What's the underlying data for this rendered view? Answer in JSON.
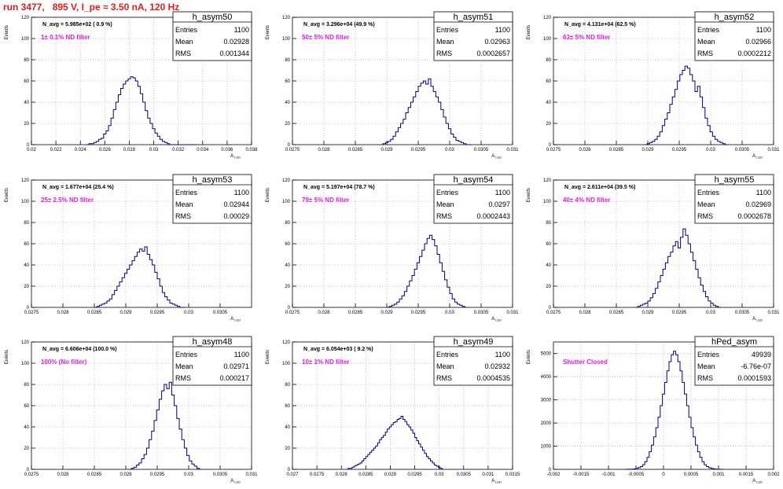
{
  "header": {
    "title": "run 3477,   895 V, I_pe ≈ 3.50 nA, 120 Hz"
  },
  "colors": {
    "title": "#e41a1c",
    "annotation": "#e020e0",
    "histogram": "#00007f",
    "grid": "#b8b8b8",
    "axis": "#000000"
  },
  "panel_text": {
    "ylabel": "Events",
    "xlabel": "A_LED",
    "stats_labels": {
      "entries": "Entries",
      "mean": "Mean",
      "rms": "RMS"
    }
  },
  "chart_data": [
    {
      "type": "histogram",
      "name": "h_asym50",
      "navg": "N_avg = 5.985e+02 ( 0.9 %)",
      "note": "1± 0.1% ND filter",
      "entries": "1100",
      "mean": "0.02928",
      "rms": "0.001344",
      "xlim": [
        0.02,
        0.038
      ],
      "ylim": [
        0,
        120
      ],
      "xticks": [
        "0.02",
        "0.022",
        "0.024",
        "0.026",
        "0.028",
        "0.03",
        "0.032",
        "0.034",
        "0.036",
        "0.038"
      ],
      "yticks": [
        "0",
        "20",
        "40",
        "60",
        "80",
        "100",
        "120"
      ],
      "xlabel": "A_LED",
      "ylabel": "Events",
      "grid": true,
      "bins": {
        "start": 0.0245,
        "width": 0.0002,
        "counts": [
          0,
          1,
          1,
          2,
          3,
          5,
          6,
          10,
          13,
          18,
          25,
          33,
          40,
          47,
          53,
          57,
          60,
          62,
          64,
          63,
          60,
          55,
          48,
          40,
          32,
          25,
          20,
          15,
          11,
          8,
          5,
          3,
          2,
          1,
          0,
          0,
          0,
          0,
          0,
          0,
          0,
          0,
          0,
          0,
          0
        ]
      }
    },
    {
      "type": "histogram",
      "name": "h_asym51",
      "navg": "N_avg = 3.296e+04 (49.9 %)",
      "note": "50± 5% ND filter",
      "entries": "1100",
      "mean": "0.02963",
      "rms": "0.0002657",
      "xlim": [
        0.0275,
        0.031
      ],
      "ylim": [
        0,
        120
      ],
      "xticks": [
        "0.0275",
        "0.028",
        "0.0285",
        "0.029",
        "0.0295",
        "0.03",
        "0.0305",
        "0.031"
      ],
      "yticks": [
        "0",
        "20",
        "40",
        "60",
        "80",
        "100",
        "120"
      ],
      "xlabel": "A_LED",
      "ylabel": "Events",
      "grid": true,
      "bins": {
        "start": 0.0289,
        "width": 4e-05,
        "counts": [
          0,
          1,
          2,
          3,
          5,
          8,
          12,
          16,
          20,
          24,
          30,
          35,
          40,
          45,
          50,
          55,
          58,
          60,
          57,
          62,
          55,
          50,
          45,
          40,
          33,
          26,
          20,
          15,
          10,
          7,
          4,
          3,
          2,
          1,
          0,
          0
        ]
      }
    },
    {
      "type": "histogram",
      "name": "h_asym52",
      "navg": "N_avg = 4.131e+04 (62.5 %)",
      "note": "63± 5% ND filter",
      "entries": "1100",
      "mean": "0.02966",
      "rms": "0.0002212",
      "xlim": [
        0.0275,
        0.031
      ],
      "ylim": [
        0,
        120
      ],
      "xticks": [
        "0.0275",
        "0.028",
        "0.0285",
        "0.029",
        "0.0295",
        "0.03",
        "0.0305",
        "0.031"
      ],
      "yticks": [
        "0",
        "20",
        "40",
        "60",
        "80",
        "100",
        "120"
      ],
      "xlabel": "A_LED",
      "ylabel": "Events",
      "grid": true,
      "bins": {
        "start": 0.02895,
        "width": 4e-05,
        "counts": [
          0,
          1,
          2,
          3,
          5,
          8,
          12,
          18,
          24,
          30,
          38,
          45,
          52,
          60,
          66,
          70,
          74,
          72,
          66,
          60,
          50,
          55,
          45,
          35,
          25,
          18,
          12,
          8,
          5,
          3,
          2,
          1,
          0
        ]
      }
    },
    {
      "type": "histogram",
      "name": "h_asym53",
      "navg": "N_avg = 1.677e+04 (25.4 %)",
      "note": "25± 2.5% ND filter",
      "entries": "1100",
      "mean": "0.02944",
      "rms": "0.00029",
      "xlim": [
        0.0275,
        0.031
      ],
      "ylim": [
        0,
        120
      ],
      "xticks": [
        "0.0275",
        "0.028",
        "0.0285",
        "0.029",
        "0.0295",
        "0.03",
        "0.0305"
      ],
      "yticks": [
        "0",
        "20",
        "40",
        "60",
        "80",
        "100",
        "120"
      ],
      "xlabel": "A_LED",
      "ylabel": "Events",
      "grid": true,
      "bins": {
        "start": 0.0285,
        "width": 4e-05,
        "counts": [
          0,
          1,
          2,
          3,
          4,
          6,
          8,
          12,
          16,
          20,
          24,
          28,
          32,
          36,
          40,
          44,
          48,
          52,
          55,
          53,
          57,
          50,
          45,
          40,
          33,
          27,
          20,
          14,
          10,
          7,
          4,
          3,
          2,
          1,
          0,
          0
        ]
      }
    },
    {
      "type": "histogram",
      "name": "h_asym54",
      "navg": "N_avg = 5.197e+04 (78.7 %)",
      "note": "79± 5% ND filter",
      "entries": "1100",
      "mean": "0.0297",
      "rms": "0.0002443",
      "xlim": [
        0.0275,
        0.031
      ],
      "ylim": [
        0,
        120
      ],
      "xticks": [
        "0.0275",
        "0.028",
        "0.0285",
        "0.029",
        "0.0295",
        "0.03",
        "0.0305",
        "0.031"
      ],
      "yticks": [
        "0",
        "20",
        "40",
        "60",
        "80",
        "100",
        "120"
      ],
      "xlabel": "A_LED",
      "ylabel": "Events",
      "grid": true,
      "bins": {
        "start": 0.029,
        "width": 4e-05,
        "counts": [
          0,
          1,
          2,
          3,
          5,
          8,
          11,
          15,
          20,
          25,
          30,
          36,
          42,
          48,
          54,
          60,
          65,
          68,
          64,
          58,
          50,
          42,
          34,
          26,
          19,
          13,
          8,
          5,
          3,
          2,
          1,
          0
        ]
      }
    },
    {
      "type": "histogram",
      "name": "h_asym55",
      "navg": "N_avg = 2.611e+04 (39.5 %)",
      "note": "40± 4% ND filter",
      "entries": "1100",
      "mean": "0.02969",
      "rms": "0.0002678",
      "xlim": [
        0.0275,
        0.031
      ],
      "ylim": [
        0,
        120
      ],
      "xticks": [
        "0.0275",
        "0.028",
        "0.0285",
        "0.029",
        "0.0295",
        "0.03",
        "0.0305",
        "0.031"
      ],
      "yticks": [
        "0",
        "20",
        "40",
        "60",
        "80",
        "100",
        "120"
      ],
      "xlabel": "A_LED",
      "ylabel": "Events",
      "grid": true,
      "bins": {
        "start": 0.0288,
        "width": 4e-05,
        "counts": [
          0,
          1,
          2,
          3,
          4,
          6,
          9,
          13,
          18,
          24,
          30,
          36,
          42,
          48,
          52,
          58,
          62,
          56,
          66,
          74,
          68,
          60,
          52,
          44,
          36,
          28,
          21,
          15,
          10,
          6,
          4,
          2,
          1,
          0
        ]
      }
    },
    {
      "type": "histogram",
      "name": "h_asym48",
      "navg": "N_avg = 6.606e+04 (100.0 %)",
      "note": "100% (No filter)",
      "entries": "1100",
      "mean": "0.02971",
      "rms": "0.000217",
      "xlim": [
        0.0275,
        0.031
      ],
      "ylim": [
        0,
        120
      ],
      "xticks": [
        "0.0275",
        "0.028",
        "0.0285",
        "0.029",
        "0.0295",
        "0.03",
        "0.0305",
        "0.031"
      ],
      "yticks": [
        "0",
        "20",
        "40",
        "60",
        "80",
        "100",
        "120"
      ],
      "xlabel": "A_LED",
      "ylabel": "Events",
      "grid": true,
      "bins": {
        "start": 0.02905,
        "width": 4e-05,
        "counts": [
          0,
          1,
          2,
          4,
          6,
          10,
          14,
          20,
          28,
          36,
          46,
          56,
          66,
          74,
          80,
          76,
          82,
          70,
          60,
          48,
          38,
          28,
          20,
          13,
          8,
          5,
          3,
          1,
          0
        ]
      }
    },
    {
      "type": "histogram",
      "name": "h_asym49",
      "navg": "N_avg = 6.054e+03 ( 9.2 %)",
      "note": "10± 1% ND filter",
      "entries": "1100",
      "mean": "0.02932",
      "rms": "0.0004535",
      "xlim": [
        0.027,
        0.0315
      ],
      "ylim": [
        0,
        120
      ],
      "xticks": [
        "0.027",
        "0.0275",
        "0.028",
        "0.0285",
        "0.029",
        "0.0295",
        "0.03",
        "0.0305",
        "0.031",
        "0.0315"
      ],
      "yticks": [
        "0",
        "20",
        "40",
        "60",
        "80",
        "100",
        "120"
      ],
      "xlabel": "A_LED",
      "ylabel": "Events",
      "grid": true,
      "bins": {
        "start": 0.0281,
        "width": 4e-05,
        "counts": [
          0,
          1,
          1,
          2,
          3,
          4,
          5,
          6,
          8,
          10,
          12,
          14,
          16,
          18,
          20,
          22,
          25,
          28,
          30,
          32,
          35,
          38,
          40,
          42,
          44,
          45,
          47,
          48,
          50,
          47,
          45,
          42,
          40,
          37,
          34,
          30,
          27,
          24,
          21,
          18,
          15,
          12,
          10,
          8,
          6,
          4,
          3,
          2,
          1,
          0
        ]
      }
    },
    {
      "type": "histogram",
      "name": "hPed_asym",
      "navg": "",
      "note": "Shutter Closed",
      "entries": "49939",
      "mean": "-6.76e-07",
      "rms": "0.0001593",
      "xlim": [
        -0.002,
        0.002
      ],
      "ylim": [
        0,
        5500
      ],
      "xticks": [
        "-0.002",
        "-0.0015",
        "-0.001",
        "-0.0005",
        "0",
        "0.0005",
        "0.001",
        "0.0015",
        "0.002"
      ],
      "yticks": [
        "0",
        "1000",
        "2000",
        "3000",
        "4000",
        "5000"
      ],
      "xlabel": "A_LED",
      "ylabel": "Events",
      "grid": true,
      "bins": {
        "start": -0.0007,
        "width": 4e-05,
        "counts": [
          0,
          2,
          5,
          10,
          20,
          40,
          70,
          120,
          200,
          330,
          520,
          760,
          1050,
          1400,
          1800,
          2250,
          2750,
          3250,
          3750,
          4250,
          4650,
          4950,
          5100,
          4950,
          4650,
          4250,
          3750,
          3250,
          2750,
          2250,
          1800,
          1400,
          1050,
          760,
          520,
          330,
          200,
          120,
          70,
          40,
          20,
          10,
          5,
          2,
          0
        ]
      }
    }
  ]
}
